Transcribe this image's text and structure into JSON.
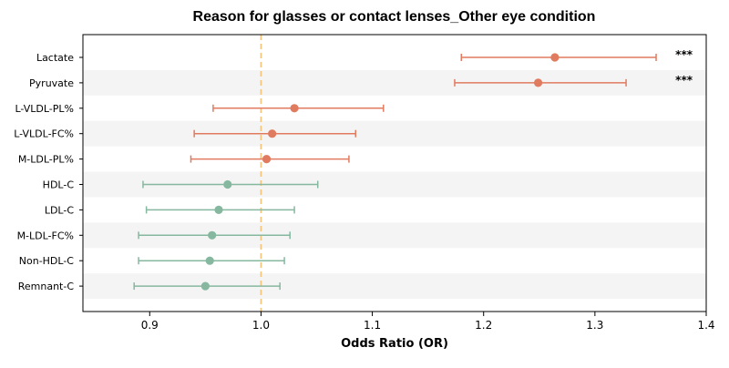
{
  "chart_data": {
    "type": "forest",
    "title": "Reason for glasses or contact lenses_Other eye condition",
    "xlabel": "Odds Ratio (OR)",
    "ylabel": "",
    "xlim": [
      0.84,
      1.4
    ],
    "xticks": [
      0.9,
      1.0,
      1.1,
      1.2,
      1.3,
      1.4
    ],
    "xtick_labels": [
      "0.9",
      "1.0",
      "1.1",
      "1.2",
      "1.3",
      "1.4"
    ],
    "reference_line": 1.0,
    "grid": false,
    "alternating_row_shading": true,
    "colors": {
      "risk": "#E07B60",
      "protective": "#86B8A0",
      "reference_line": "#F5C27A",
      "row_shading": "#F4F4F4"
    },
    "rows": [
      {
        "label": "Lactate",
        "or": 1.264,
        "lower": 1.18,
        "upper": 1.355,
        "group": "risk",
        "significance": "***"
      },
      {
        "label": "Pyruvate",
        "or": 1.249,
        "lower": 1.174,
        "upper": 1.328,
        "group": "risk",
        "significance": "***"
      },
      {
        "label": "L-VLDL-PL%",
        "or": 1.03,
        "lower": 0.957,
        "upper": 1.11,
        "group": "risk",
        "significance": ""
      },
      {
        "label": "L-VLDL-FC%",
        "or": 1.01,
        "lower": 0.94,
        "upper": 1.085,
        "group": "risk",
        "significance": ""
      },
      {
        "label": "M-LDL-PL%",
        "or": 1.005,
        "lower": 0.937,
        "upper": 1.079,
        "group": "risk",
        "significance": ""
      },
      {
        "label": "HDL-C",
        "or": 0.97,
        "lower": 0.894,
        "upper": 1.051,
        "group": "protective",
        "significance": ""
      },
      {
        "label": "LDL-C",
        "or": 0.962,
        "lower": 0.897,
        "upper": 1.03,
        "group": "protective",
        "significance": ""
      },
      {
        "label": "M-LDL-FC%",
        "or": 0.956,
        "lower": 0.89,
        "upper": 1.026,
        "group": "protective",
        "significance": ""
      },
      {
        "label": "Non-HDL-C",
        "or": 0.954,
        "lower": 0.89,
        "upper": 1.021,
        "group": "protective",
        "significance": ""
      },
      {
        "label": "Remnant-C",
        "or": 0.95,
        "lower": 0.886,
        "upper": 1.017,
        "group": "protective",
        "significance": ""
      }
    ]
  }
}
